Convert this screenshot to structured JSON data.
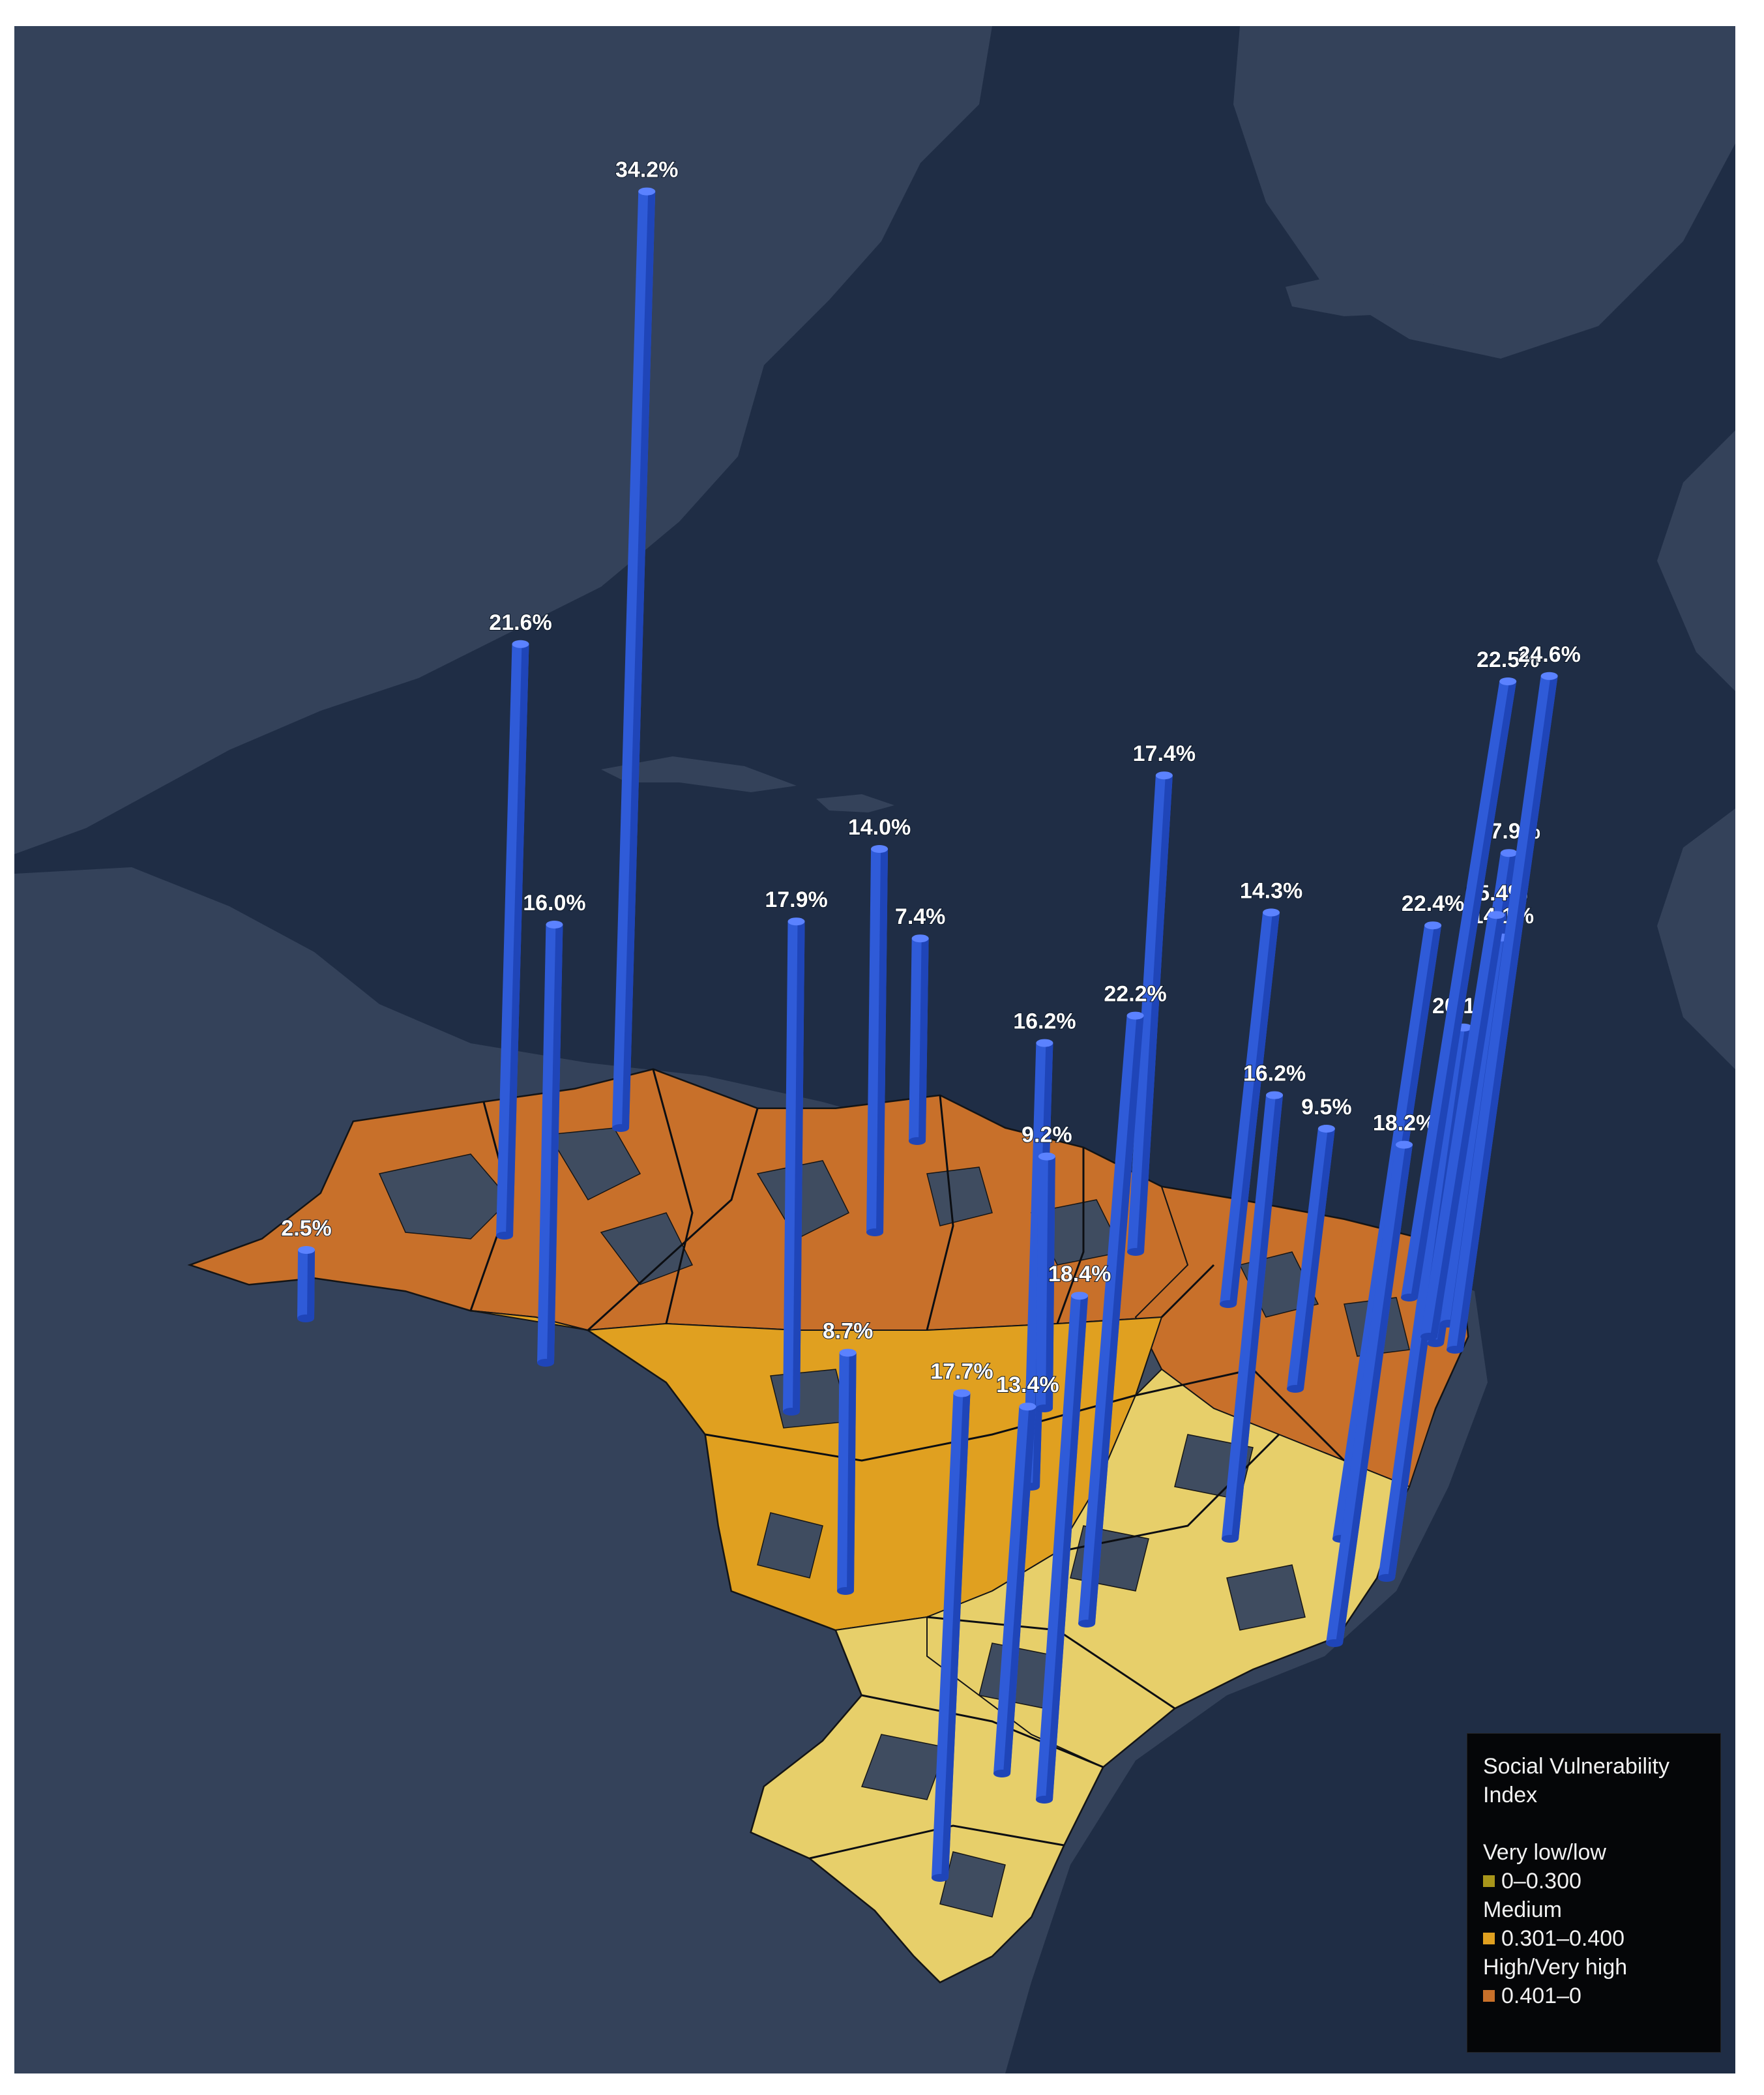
{
  "map": {
    "colors": {
      "ocean": "#1f2d45",
      "land": "#34425a",
      "brazil_unclassified": "#3f4c60",
      "bar": "#2f5bd8",
      "bar_shade": "#1f45b8",
      "bar_top": "#5b82ff"
    },
    "bars": [
      {
        "label": "34.2%",
        "value": 34.2
      },
      {
        "label": "21.6%",
        "value": 21.6
      },
      {
        "label": "16.0%",
        "value": 16.0
      },
      {
        "label": "2.5%",
        "value": 2.5
      },
      {
        "label": "17.9%",
        "value": 17.9
      },
      {
        "label": "14.0%",
        "value": 14.0
      },
      {
        "label": "7.4%",
        "value": 7.4
      },
      {
        "label": "8.7%",
        "value": 8.7
      },
      {
        "label": "16.2%",
        "value": 16.2
      },
      {
        "label": "9.2%",
        "value": 9.2
      },
      {
        "label": "17.4%",
        "value": 17.4
      },
      {
        "label": "22.2%",
        "value": 22.2
      },
      {
        "label": "18.4%",
        "value": 18.4
      },
      {
        "label": "17.7%",
        "value": 17.7
      },
      {
        "label": "13.4%",
        "value": 13.4
      },
      {
        "label": "14.3%",
        "value": 14.3
      },
      {
        "label": "16.2%",
        "value": 16.2
      },
      {
        "label": "9.5%",
        "value": 9.5
      },
      {
        "label": "22.4%",
        "value": 22.4
      },
      {
        "label": "18.2%",
        "value": 18.2
      },
      {
        "label": "20.1%",
        "value": 20.1
      },
      {
        "label": "17.9%",
        "value": 17.9
      },
      {
        "label": "14.1%",
        "value": 14.1
      },
      {
        "label": "15.4%",
        "value": 15.4
      },
      {
        "label": "22.5%",
        "value": 22.5
      },
      {
        "label": "24.6%",
        "value": 24.6
      }
    ]
  },
  "legend": {
    "title": "Social Vulnerability Index",
    "categories": [
      {
        "name": "Very low/low",
        "range": "0–0.300",
        "color": "#a8951a"
      },
      {
        "name": "Medium",
        "range": "0.301–0.400",
        "color": "#e0a020"
      },
      {
        "name": "High/Very high",
        "range": "0.401–0",
        "color": "#c8702a"
      }
    ]
  }
}
